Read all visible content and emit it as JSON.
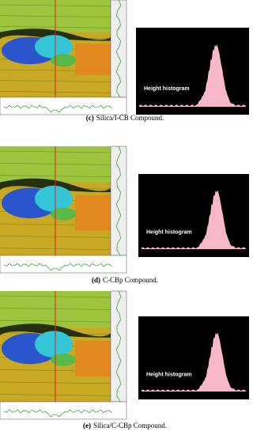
{
  "panels": [
    {
      "label": "(c)",
      "caption": "Silica/I-CB Compound.",
      "histogram_label": "Height histogram"
    },
    {
      "label": "(d)",
      "caption": "C-CBp Compound.",
      "histogram_label": "Height histogram"
    },
    {
      "label": "(e)",
      "caption": "Silica/C-CBp Compound.",
      "histogram_label": "Height histogram"
    }
  ]
}
